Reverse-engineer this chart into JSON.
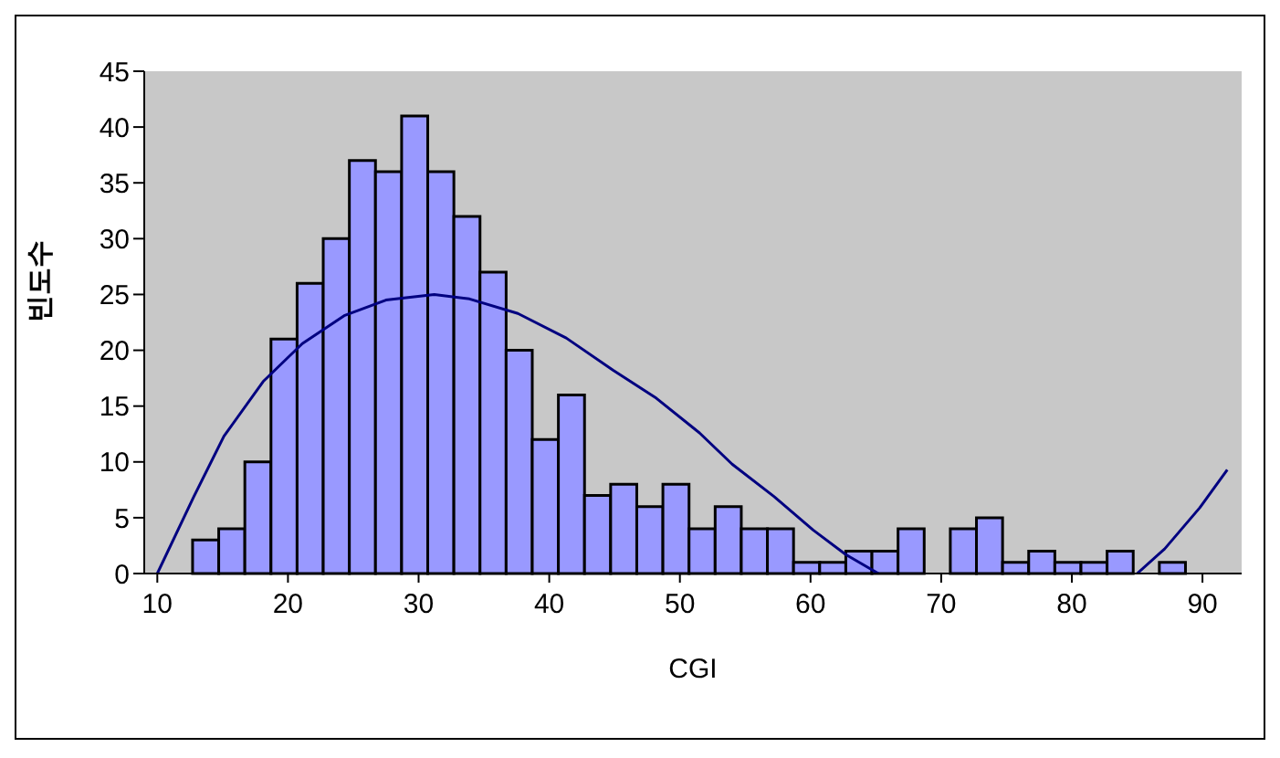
{
  "chart_data": {
    "type": "histogram",
    "xlabel": "CGI",
    "ylabel": "빈도수",
    "bins": [
      12.7,
      14.7,
      16.7,
      18.7,
      20.7,
      22.7,
      24.7,
      26.7,
      28.7,
      30.7,
      32.7,
      34.7,
      36.7,
      38.7,
      40.7,
      42.7,
      44.7,
      46.7,
      48.7,
      50.7,
      52.7,
      54.7,
      56.7,
      58.7,
      60.7,
      62.7,
      64.7,
      66.7,
      68.7,
      70.7,
      72.7,
      74.7,
      76.7,
      78.7,
      80.7,
      82.7,
      84.7,
      86.7,
      88.7
    ],
    "values": [
      3,
      4,
      10,
      21,
      26,
      30,
      37,
      36,
      41,
      36,
      32,
      27,
      20,
      12,
      16,
      7,
      8,
      6,
      8,
      4,
      6,
      4,
      4,
      1,
      1,
      2,
      2,
      4,
      0,
      4,
      5,
      1,
      2,
      1,
      1,
      2,
      0,
      1
    ],
    "color": "#9999ff",
    "series": [
      {
        "type": "line",
        "color": "#000080",
        "x": [
          10.0,
          12.8,
          15.1,
          18.1,
          21.1,
          24.3,
          27.5,
          31.2,
          33.9,
          37.6,
          41.3,
          44.9,
          48.2,
          51.5,
          54.0,
          57.2,
          60.2,
          62.7,
          65.2,
          75,
          85.0,
          87.1,
          89.8,
          91.9
        ],
        "values": [
          0,
          6.9,
          12.3,
          17.2,
          20.6,
          23.1,
          24.5,
          25.0,
          24.6,
          23.3,
          21.1,
          18.2,
          15.7,
          12.6,
          9.8,
          6.9,
          3.9,
          1.7,
          0,
          null,
          0,
          2.2,
          5.9,
          9.3
        ]
      }
    ],
    "xlim": [
      9,
      93
    ],
    "xticks": [
      10,
      20,
      30,
      40,
      50,
      60,
      70,
      80,
      90
    ],
    "ylim": [
      0,
      45
    ],
    "yticks": [
      0,
      5,
      10,
      15,
      20,
      25,
      30,
      35,
      40,
      45
    ],
    "grid": false,
    "legend": false,
    "marker": "none",
    "line_style": "solid"
  }
}
